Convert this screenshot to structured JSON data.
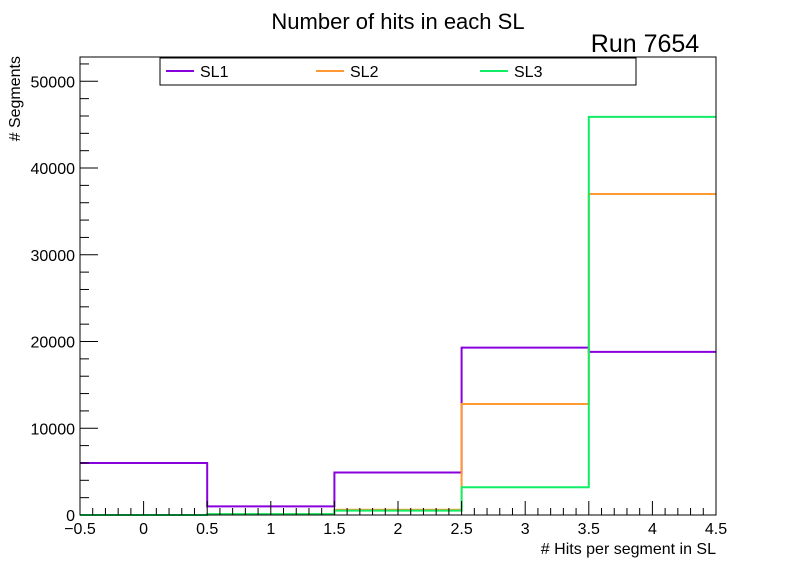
{
  "chart_data": {
    "type": "step",
    "title": "Number of hits in each SL",
    "annotation": "Run 7654",
    "xlabel": "# Hits per segment in SL",
    "ylabel": "# Segments",
    "xlim": [
      -0.5,
      4.5
    ],
    "ylim": [
      0,
      52800
    ],
    "x_ticks": [
      -0.5,
      0,
      0.5,
      1,
      1.5,
      2,
      2.5,
      3,
      3.5,
      4,
      4.5
    ],
    "x_tick_labels": [
      "−0.5",
      "0",
      "0.5",
      "1",
      "1.5",
      "2",
      "2.5",
      "3",
      "3.5",
      "4",
      "4.5"
    ],
    "y_ticks": [
      0,
      10000,
      20000,
      30000,
      40000,
      50000
    ],
    "y_tick_labels": [
      "0",
      "10000",
      "20000",
      "30000",
      "40000",
      "50000"
    ],
    "bin_edges": [
      -0.5,
      0.5,
      1.5,
      2.5,
      3.5,
      4.5
    ],
    "series": [
      {
        "name": "SL1",
        "color": "#8800dd",
        "values": [
          6000,
          1000,
          4900,
          19300,
          18800
        ]
      },
      {
        "name": "SL2",
        "color": "#ff9933",
        "values": [
          0,
          100,
          600,
          12800,
          37000
        ]
      },
      {
        "name": "SL3",
        "color": "#11ee66",
        "values": [
          0,
          100,
          500,
          3200,
          45900
        ]
      }
    ],
    "legend_position": "top"
  }
}
